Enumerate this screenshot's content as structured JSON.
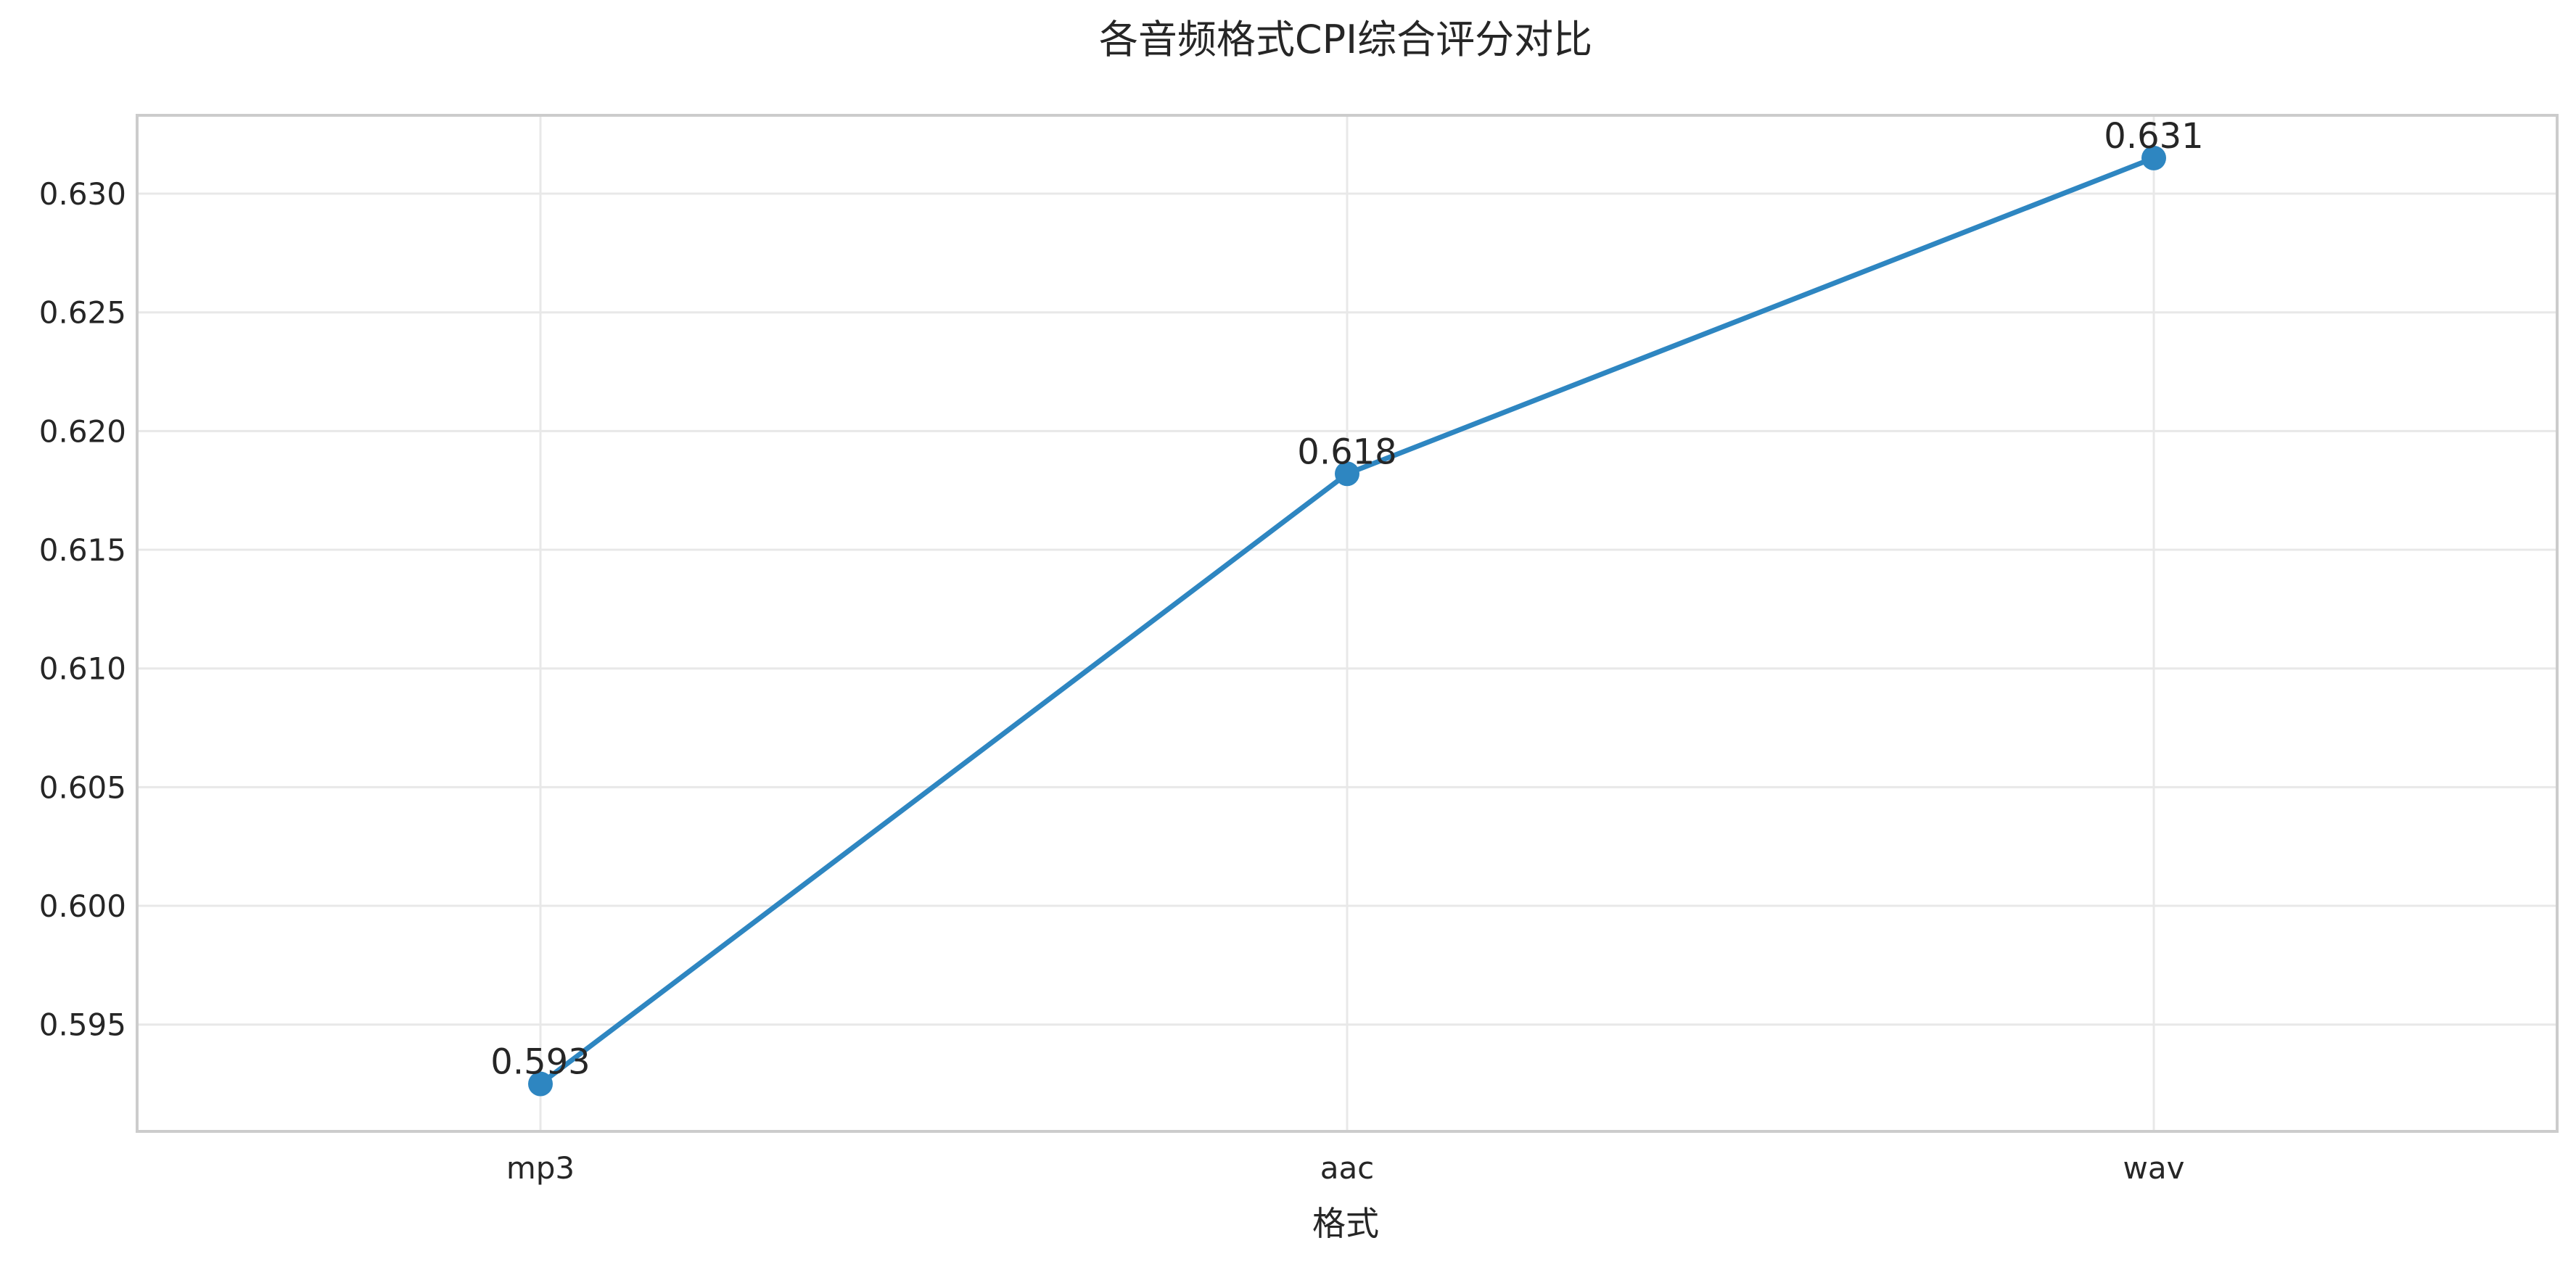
{
  "chart_data": {
    "type": "line",
    "title": "各音频格式CPI综合评分对比",
    "xlabel": "格式",
    "ylabel": "",
    "categories": [
      "mp3",
      "aac",
      "wav"
    ],
    "series": [
      {
        "values": [
          0.5925,
          0.6182,
          0.6315
        ],
        "labels": [
          "0.593",
          "0.618",
          "0.631"
        ]
      }
    ],
    "ylim": [
      0.5905,
      0.6333
    ],
    "yticks": [
      0.595,
      0.6,
      0.605,
      0.61,
      0.615,
      0.62,
      0.625,
      0.63
    ],
    "ytick_labels": [
      "0.595",
      "0.600",
      "0.605",
      "0.610",
      "0.615",
      "0.620",
      "0.625",
      "0.630"
    ],
    "grid": true,
    "line_color": "#2e86c1"
  }
}
